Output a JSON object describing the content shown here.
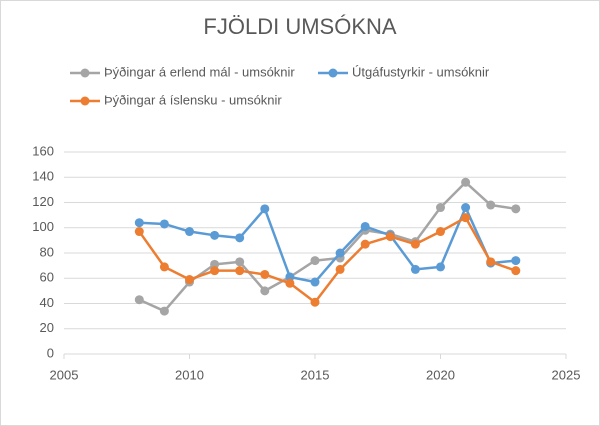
{
  "chart_data": {
    "type": "line",
    "title": "FJÖLDI UMSÓKNA",
    "x": [
      2008,
      2009,
      2010,
      2011,
      2012,
      2013,
      2014,
      2015,
      2016,
      2017,
      2018,
      2019,
      2020,
      2021,
      2022,
      2023
    ],
    "series": [
      {
        "name": "Þýðingar á erlend mál - umsóknir",
        "color": "#a5a5a5",
        "values": [
          43,
          34,
          57,
          71,
          73,
          50,
          61,
          74,
          76,
          98,
          95,
          89,
          116,
          136,
          118,
          115
        ]
      },
      {
        "name": "Útgáfustyrkir - umsóknir",
        "color": "#5b9bd5",
        "values": [
          104,
          103,
          97,
          94,
          92,
          115,
          61,
          57,
          80,
          101,
          94,
          67,
          69,
          116,
          72,
          74
        ]
      },
      {
        "name": "Þýðingar á íslensku - umsóknir",
        "color": "#ed7d31",
        "values": [
          97,
          69,
          59,
          66,
          66,
          63,
          56,
          41,
          67,
          87,
          93,
          87,
          97,
          108,
          73,
          66
        ]
      }
    ],
    "xlim": [
      2005,
      2025
    ],
    "xticks": [
      2005,
      2010,
      2015,
      2020,
      2025
    ],
    "ylim": [
      0,
      160
    ],
    "yticks": [
      0,
      20,
      40,
      60,
      80,
      100,
      120,
      140,
      160
    ],
    "grid": true
  }
}
